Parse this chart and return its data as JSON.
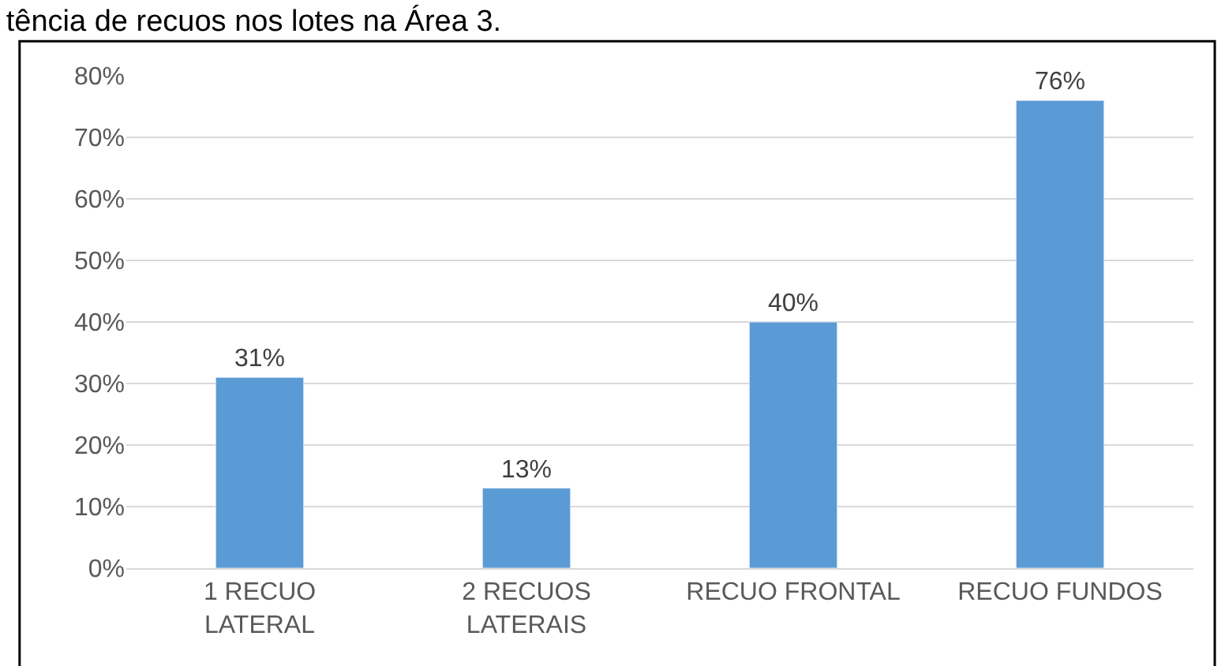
{
  "chart_data": {
    "type": "bar",
    "title": "tência de recuos nos lotes na Área 3.",
    "categories": [
      "1 RECUO\nLATERAL",
      "2 RECUOS\nLATERAIS",
      "RECUO FRONTAL",
      "RECUO FUNDOS"
    ],
    "values": [
      31,
      13,
      40,
      76
    ],
    "value_labels": [
      "31%",
      "13%",
      "40%",
      "76%"
    ],
    "color": "#5b9bd5",
    "ylim": [
      0,
      80
    ],
    "yticks": [
      {
        "value": 0,
        "label": "0%"
      },
      {
        "value": 10,
        "label": "10%"
      },
      {
        "value": 20,
        "label": "20%"
      },
      {
        "value": 30,
        "label": "30%"
      },
      {
        "value": 40,
        "label": "40%"
      },
      {
        "value": 50,
        "label": "50%"
      },
      {
        "value": 60,
        "label": "60%"
      },
      {
        "value": 70,
        "label": "70%"
      },
      {
        "value": 80,
        "label": "80%"
      }
    ],
    "grid": "y",
    "legend": false
  }
}
